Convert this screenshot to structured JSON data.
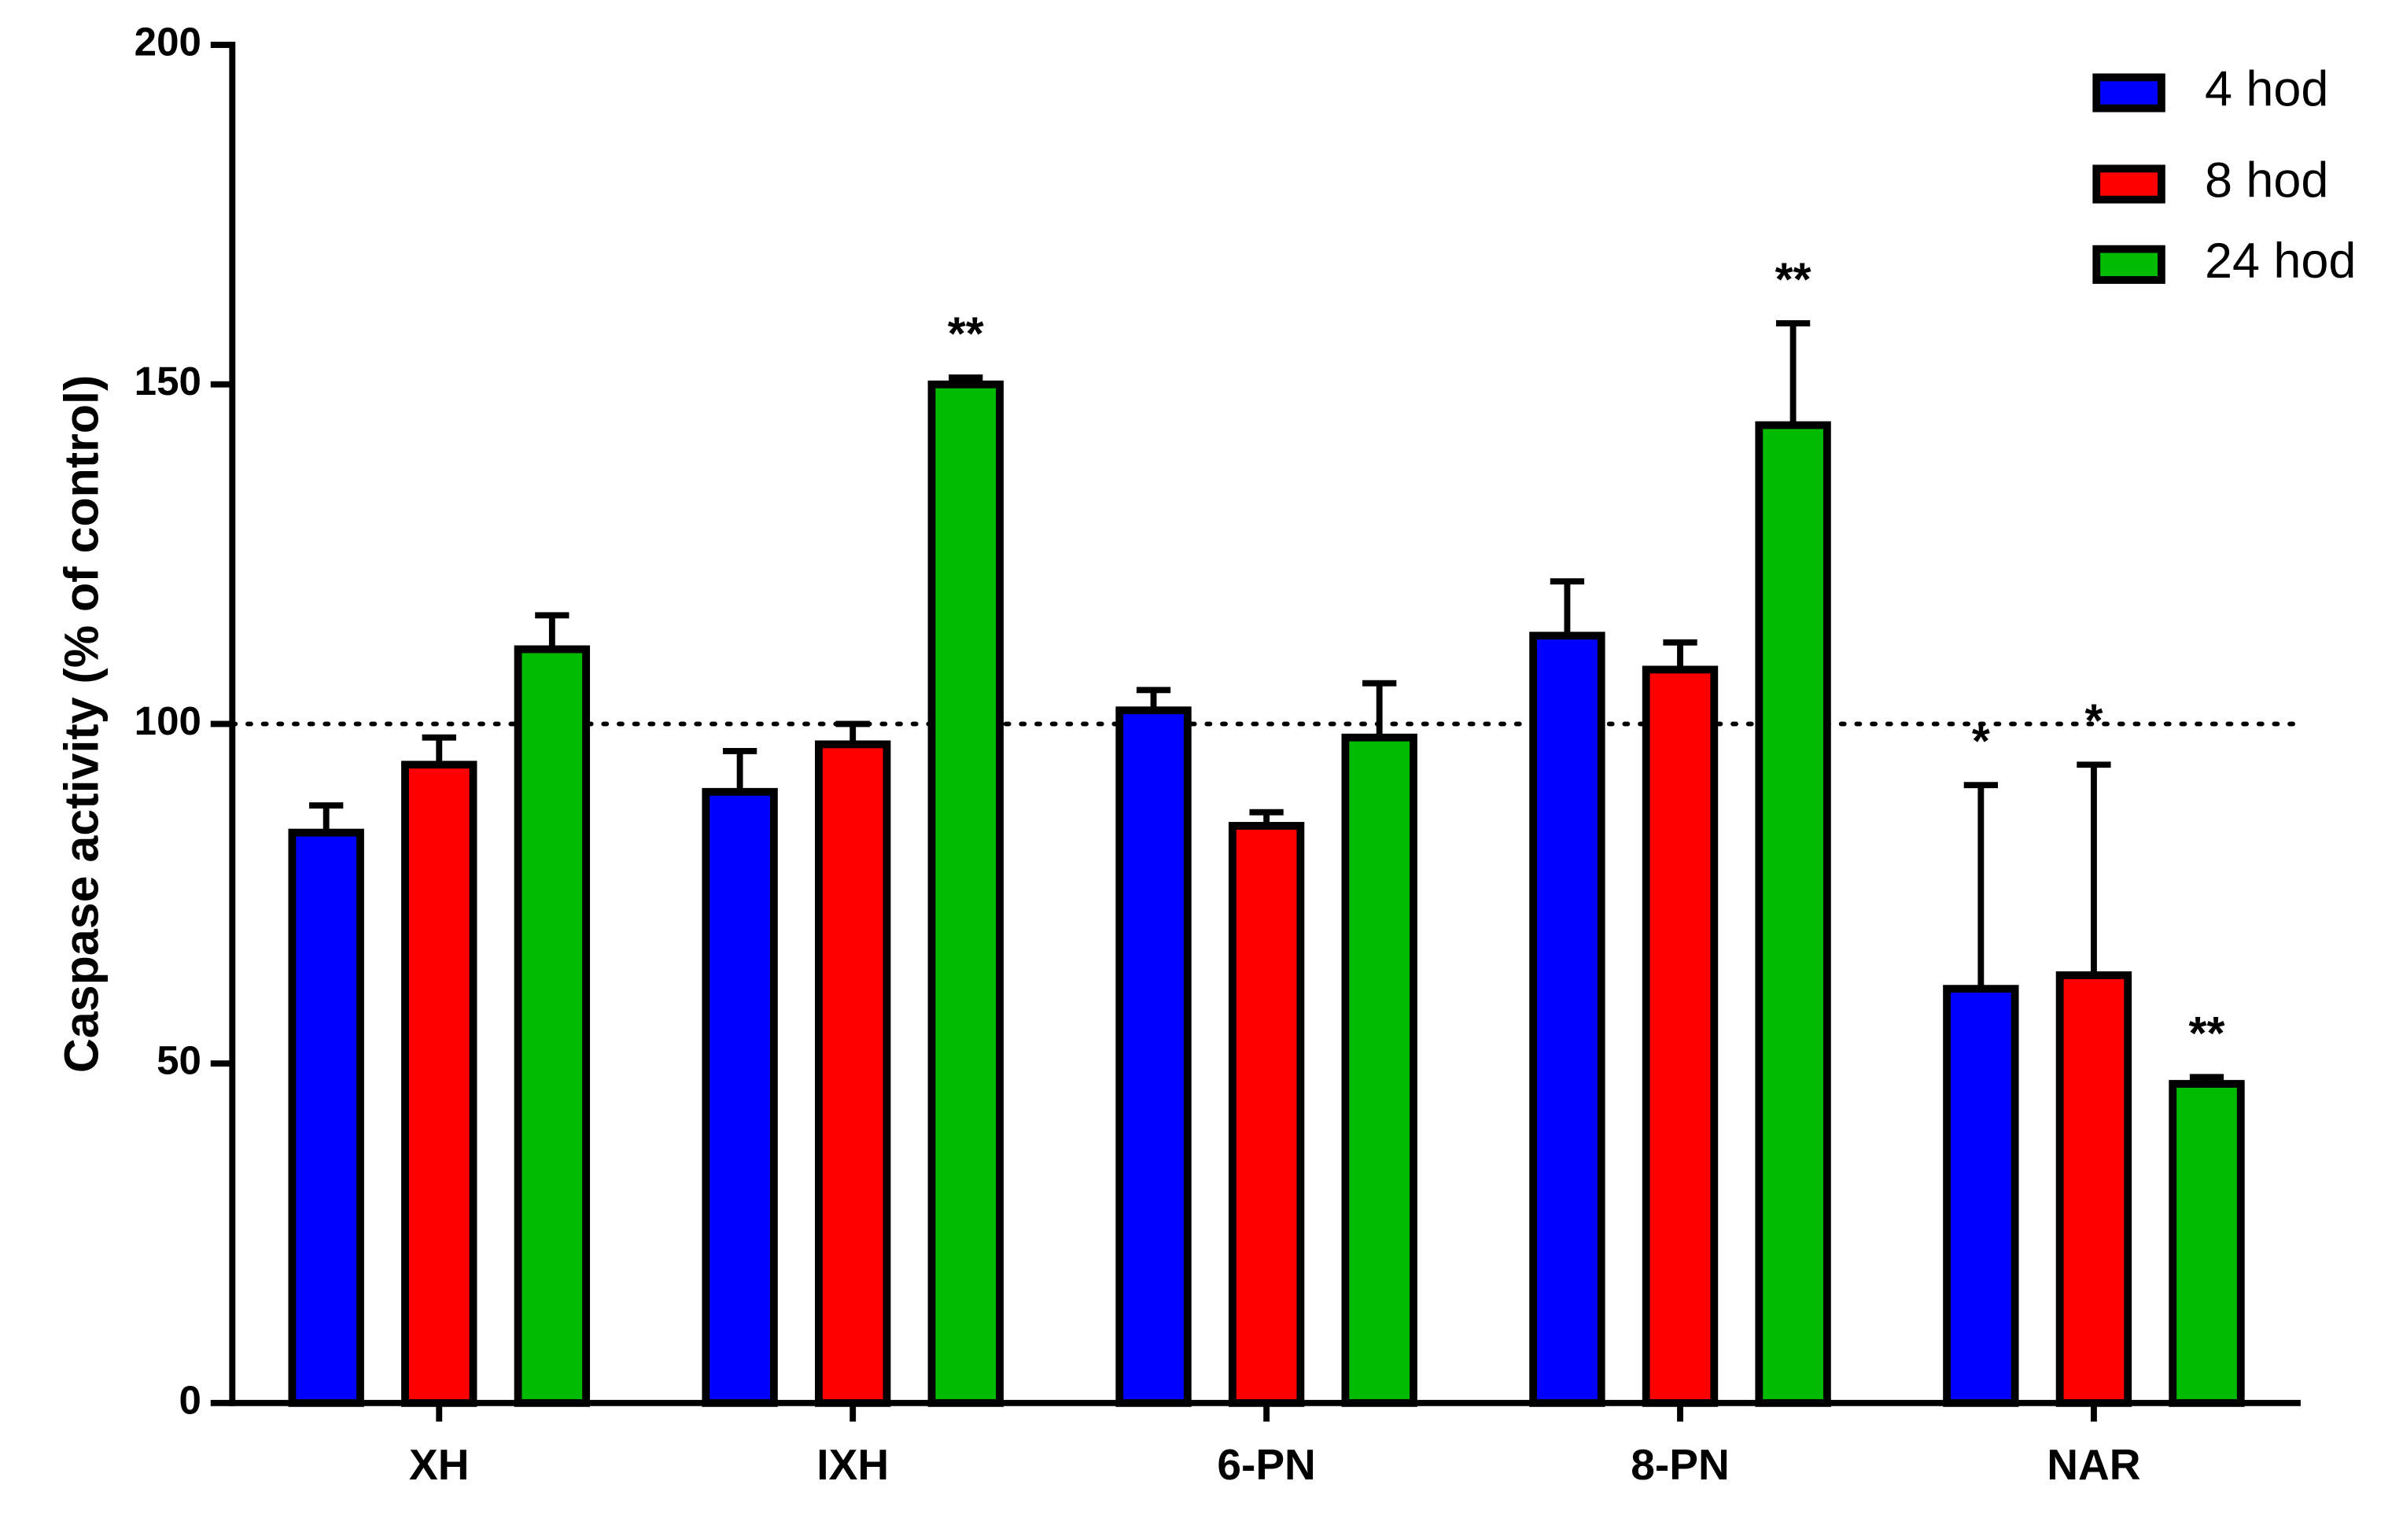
{
  "chart_data": {
    "type": "bar",
    "y_label": "Caspase activity (% of control)",
    "categories": [
      "XH",
      "IXH",
      "6-PN",
      "8-PN",
      "NAR"
    ],
    "series": [
      {
        "name": "4 hod",
        "color": "#0000ff",
        "values": [
          84,
          90,
          102,
          113,
          61
        ],
        "errors": [
          4,
          6,
          3,
          8,
          30
        ],
        "significance": [
          null,
          null,
          null,
          null,
          "*"
        ]
      },
      {
        "name": "8 hod",
        "color": "#ff0000",
        "values": [
          94,
          97,
          85,
          108,
          63
        ],
        "errors": [
          4,
          3,
          2,
          4,
          31
        ],
        "significance": [
          null,
          null,
          null,
          null,
          "*"
        ]
      },
      {
        "name": "24 hod",
        "color": "#00bb00",
        "values": [
          111,
          150,
          98,
          144,
          47
        ],
        "errors": [
          5,
          1,
          8,
          15,
          1
        ],
        "significance": [
          null,
          "**",
          null,
          "**",
          "**"
        ]
      }
    ],
    "ylim": [
      0,
      200
    ],
    "yticks": [
      0,
      50,
      100,
      150,
      200
    ],
    "reference_line": 100,
    "legend": "top-right"
  }
}
